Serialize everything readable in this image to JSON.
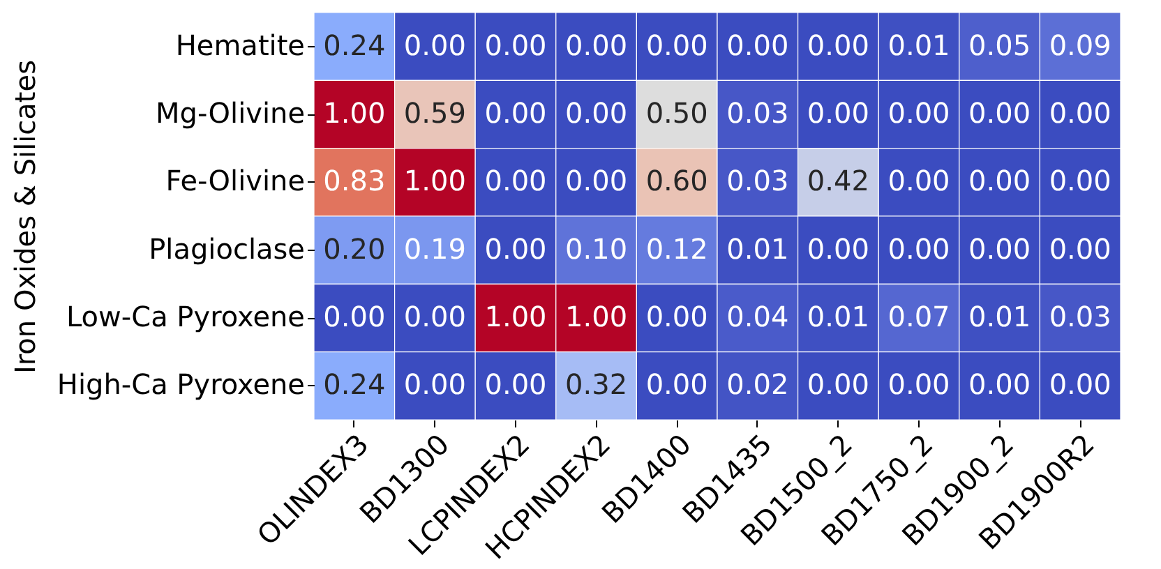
{
  "chart_data": {
    "type": "heatmap",
    "ylabel": "Iron Oxides & Silicates",
    "categories": [
      "OLINDEX3",
      "BD1300",
      "LCPINDEX2",
      "HCPINDEX2",
      "BD1400",
      "BD1435",
      "BD1500_2",
      "BD1750_2",
      "BD1900_2",
      "BD1900R2"
    ],
    "y_categories": [
      "Hematite",
      "Mg-Olivine",
      "Fe-Olivine",
      "Plagioclase",
      "Low-Ca Pyroxene",
      "High-Ca Pyroxene"
    ],
    "cells": [
      [
        0.24,
        0.0,
        0.0,
        0.0,
        0.0,
        0.0,
        0.0,
        0.01,
        0.05,
        0.09
      ],
      [
        1.0,
        0.59,
        0.0,
        0.0,
        0.5,
        0.03,
        0.0,
        0.0,
        0.0,
        0.0
      ],
      [
        0.83,
        1.0,
        0.0,
        0.0,
        0.6,
        0.03,
        0.42,
        0.0,
        0.0,
        0.0
      ],
      [
        0.2,
        0.19,
        0.0,
        0.1,
        0.12,
        0.01,
        0.0,
        0.0,
        0.0,
        0.0
      ],
      [
        0.0,
        0.0,
        1.0,
        1.0,
        0.0,
        0.04,
        0.01,
        0.07,
        0.01,
        0.03
      ],
      [
        0.24,
        0.0,
        0.0,
        0.32,
        0.0,
        0.02,
        0.0,
        0.0,
        0.0,
        0.0
      ]
    ],
    "cell_labels": [
      [
        "0.24",
        "0.00",
        "0.00",
        "0.00",
        "0.00",
        "0.00",
        "0.00",
        "0.01",
        "0.05",
        "0.09"
      ],
      [
        "1.00",
        "0.59",
        "0.00",
        "0.00",
        "0.50",
        "0.03",
        "0.00",
        "0.00",
        "0.00",
        "0.00"
      ],
      [
        "0.83",
        "1.00",
        "0.00",
        "0.00",
        "0.60",
        "0.03",
        "0.42",
        "0.00",
        "0.00",
        "0.00"
      ],
      [
        "0.20",
        "0.19",
        "0.00",
        "0.10",
        "0.12",
        "0.01",
        "0.00",
        "0.00",
        "0.00",
        "0.00"
      ],
      [
        "0.00",
        "0.00",
        "1.00",
        "1.00",
        "0.00",
        "0.04",
        "0.01",
        "0.07",
        "0.01",
        "0.03"
      ],
      [
        "0.24",
        "0.00",
        "0.00",
        "0.32",
        "0.00",
        "0.02",
        "0.00",
        "0.00",
        "0.00",
        "0.00"
      ]
    ]
  }
}
